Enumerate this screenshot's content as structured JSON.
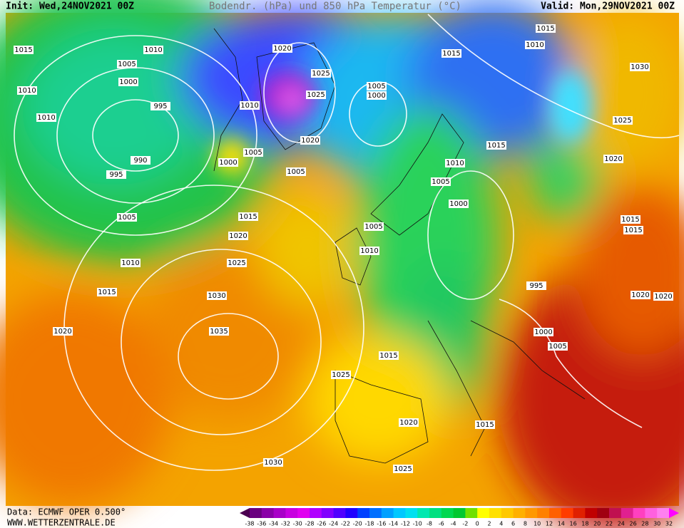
{
  "header": {
    "init": "Init: Wed,24NOV2021 00Z",
    "title": "Bodendr. (hPa) und 850 hPa Temperatur (°C)",
    "valid": "Valid: Mon,29NOV2021 00Z"
  },
  "isobar_labels": [
    "1015",
    "1010",
    "1005",
    "1000",
    "1010",
    "995",
    "1010",
    "990",
    "995",
    "1005",
    "1020",
    "1025",
    "1025",
    "1020",
    "1010",
    "1000",
    "1005",
    "1005",
    "1005",
    "1000",
    "1015",
    "1015",
    "1010",
    "1030",
    "1025",
    "1020",
    "1015",
    "1010",
    "1005",
    "1000",
    "1005",
    "1010",
    "1015",
    "1020",
    "1025",
    "1030",
    "1035",
    "1010",
    "1015",
    "1020",
    "995",
    "1000",
    "1005",
    "1015",
    "1015",
    "1020",
    "1020",
    "1015",
    "1025",
    "1020",
    "1015",
    "1025",
    "1030"
  ],
  "footer": {
    "source": "Data: ECMWF OPER 0.500°",
    "site": "WWW.WETTERZENTRALE.DE"
  },
  "legend": {
    "ticks": [
      -38,
      -36,
      -34,
      -32,
      -30,
      -28,
      -26,
      -24,
      -22,
      -20,
      -18,
      -16,
      -14,
      -12,
      -10,
      -8,
      -6,
      -4,
      -2,
      0,
      2,
      4,
      6,
      8,
      10,
      12,
      14,
      16,
      18,
      20,
      22,
      24,
      26,
      28,
      30,
      32
    ]
  }
}
